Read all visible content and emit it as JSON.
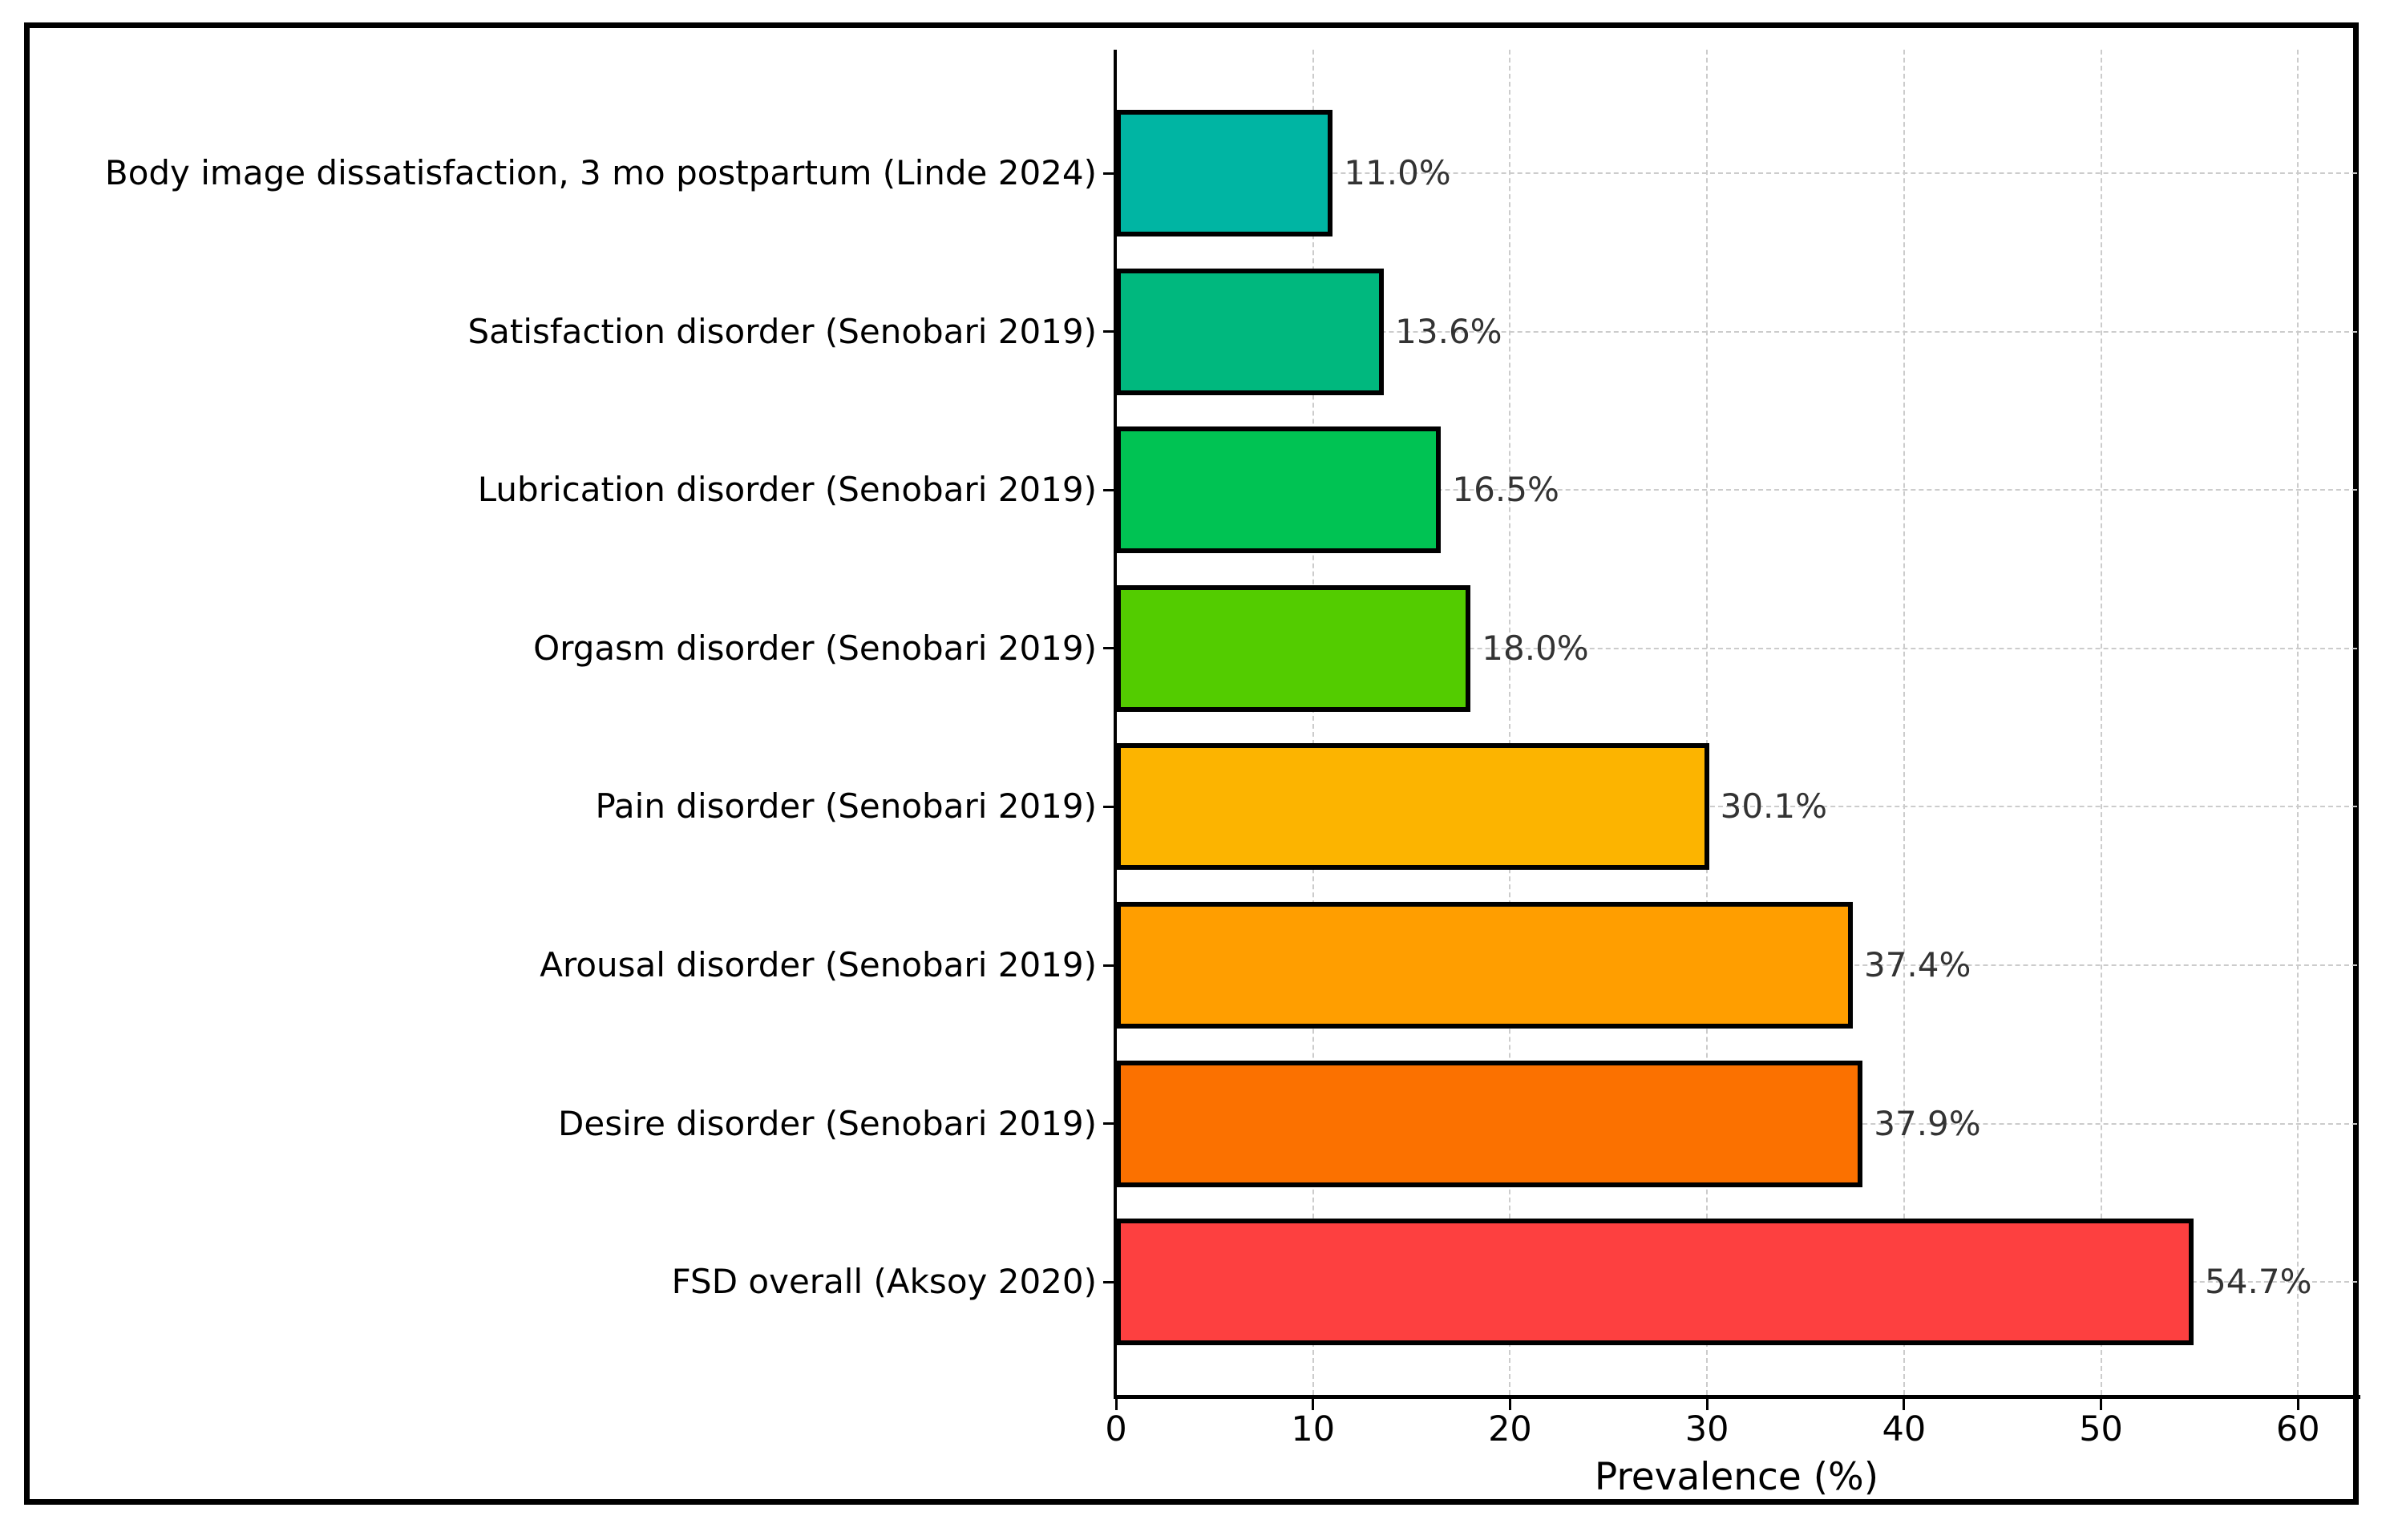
{
  "chart_data": {
    "type": "bar",
    "orientation": "horizontal",
    "xlabel": "Prevalence (%)",
    "categories": [
      "Body image dissatisfaction, 3 mo postpartum (Linde 2024)",
      "Satisfaction disorder (Senobari 2019)",
      "Lubrication disorder (Senobari 2019)",
      "Orgasm disorder (Senobari 2019)",
      "Pain disorder (Senobari 2019)",
      "Arousal disorder (Senobari 2019)",
      "Desire disorder (Senobari 2019)",
      "FSD overall (Aksoy 2020)"
    ],
    "values": [
      11.0,
      13.6,
      16.5,
      18.0,
      30.1,
      37.4,
      37.9,
      54.7
    ],
    "value_labels": [
      "11.0%",
      "13.6%",
      "16.5%",
      "18.0%",
      "30.1%",
      "37.4%",
      "37.9%",
      "54.7%"
    ],
    "bar_colors": [
      "#00b5a3",
      "#00b87e",
      "#00c353",
      "#53cc00",
      "#fcb400",
      "#ff9e00",
      "#fb7100",
      "#fd4040"
    ],
    "bar_edge_color": "#000000",
    "xlim": [
      0,
      63
    ],
    "xticks": [
      0,
      10,
      20,
      30,
      40,
      50,
      60
    ],
    "xtick_labels": [
      "0",
      "10",
      "20",
      "30",
      "40",
      "50",
      "60"
    ],
    "grid": true,
    "gridline_color": "#cccccc",
    "grid_style": "dashed",
    "legend": "none",
    "title": ""
  }
}
